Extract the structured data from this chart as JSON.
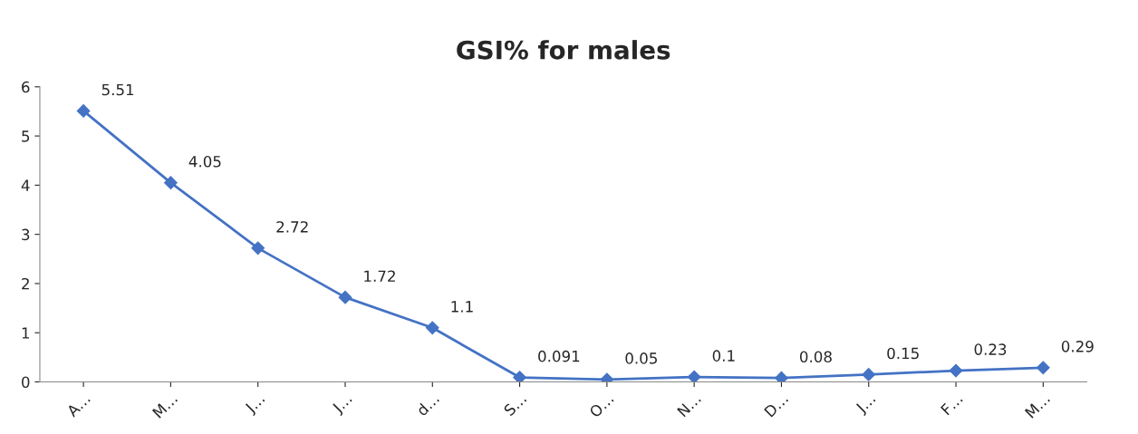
{
  "chart_data": {
    "type": "line",
    "title": "GSI% for males",
    "categories": [
      "A…",
      "M…",
      "J…",
      "J…",
      "d…",
      "S…",
      "O…",
      "N…",
      "D…",
      "J…",
      "F…",
      "M…"
    ],
    "values": [
      5.51,
      4.05,
      2.72,
      1.72,
      1.1,
      0.091,
      0.05,
      0.1,
      0.08,
      0.15,
      0.23,
      0.29
    ],
    "color": "#4472c4",
    "marker": "diamond",
    "line_style": "solid",
    "ylim": [
      0,
      6
    ],
    "yticks": [
      0,
      1,
      2,
      3,
      4,
      5,
      6
    ],
    "grid": false,
    "legend": false,
    "data_labels": true
  }
}
